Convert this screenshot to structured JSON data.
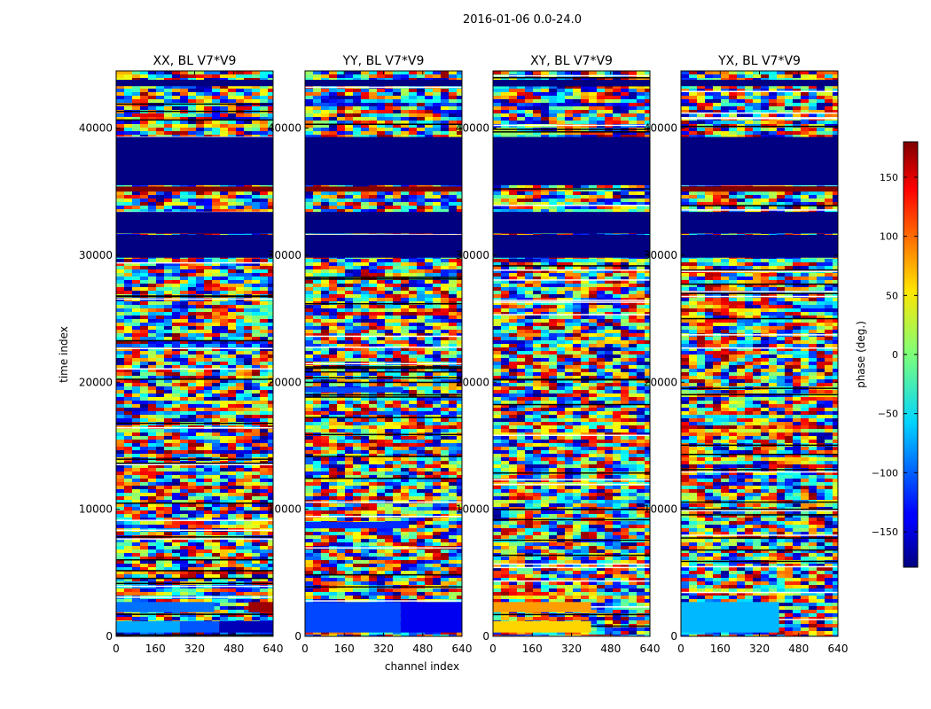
{
  "figure": {
    "suptitle": "2016-01-06 0.0-24.0"
  },
  "chart_data": {
    "type": "heatmap",
    "colormap": "jet",
    "xlabel": "channel index",
    "ylabel": "time index",
    "xlim": [
      0,
      640
    ],
    "ylim": [
      0,
      44500
    ],
    "xticks": [
      0,
      160,
      320,
      480,
      640
    ],
    "yticks": [
      0,
      10000,
      20000,
      30000,
      40000
    ],
    "colorbar": {
      "label": "phase (deg.)",
      "range": [
        -180,
        180
      ],
      "ticks": [
        150,
        100,
        50,
        0,
        -50,
        -100,
        -150
      ],
      "tick_labels": [
        "150",
        "100",
        "50",
        "0",
        "−50",
        "−100",
        "−150"
      ]
    },
    "panels": [
      {
        "title": "XX, BL V7*V9",
        "bands": [
          {
            "t0": 300,
            "t1": 1200,
            "ch0": 0,
            "ch1": 260,
            "phase": -75
          },
          {
            "t0": 300,
            "t1": 1200,
            "ch0": 260,
            "ch1": 420,
            "phase": -105
          },
          {
            "t0": 300,
            "t1": 1200,
            "ch0": 420,
            "ch1": 640,
            "phase": -160
          },
          {
            "t0": 1900,
            "t1": 2700,
            "ch0": 0,
            "ch1": 400,
            "phase": -95
          },
          {
            "t0": 1900,
            "t1": 2700,
            "ch0": 540,
            "ch1": 640,
            "phase": 170
          },
          {
            "t0": 29800,
            "t1": 31600,
            "ch0": 0,
            "ch1": 640,
            "phase": -180
          },
          {
            "t0": 31700,
            "t1": 33400,
            "ch0": 0,
            "ch1": 640,
            "phase": -180
          },
          {
            "t0": 35000,
            "t1": 35400,
            "ch0": 0,
            "ch1": 640,
            "phase": 180
          },
          {
            "t0": 35500,
            "t1": 39300,
            "ch0": 0,
            "ch1": 640,
            "phase": -180
          },
          {
            "t0": 43300,
            "t1": 43800,
            "ch0": 0,
            "ch1": 640,
            "phase": -180
          }
        ]
      },
      {
        "title": "YY, BL V7*V9",
        "bands": [
          {
            "t0": 300,
            "t1": 2700,
            "ch0": 0,
            "ch1": 390,
            "phase": -110
          },
          {
            "t0": 300,
            "t1": 2700,
            "ch0": 390,
            "ch1": 640,
            "phase": -140
          },
          {
            "t0": 8500,
            "t1": 9000,
            "ch0": 0,
            "ch1": 420,
            "phase": -120
          },
          {
            "t0": 19200,
            "t1": 19600,
            "ch0": 0,
            "ch1": 400,
            "phase": -110
          },
          {
            "t0": 29800,
            "t1": 31600,
            "ch0": 0,
            "ch1": 640,
            "phase": -180
          },
          {
            "t0": 31700,
            "t1": 33400,
            "ch0": 0,
            "ch1": 640,
            "phase": -180
          },
          {
            "t0": 35000,
            "t1": 35400,
            "ch0": 0,
            "ch1": 640,
            "phase": 180
          },
          {
            "t0": 35500,
            "t1": 39300,
            "ch0": 0,
            "ch1": 640,
            "phase": -180
          },
          {
            "t0": 43300,
            "t1": 43800,
            "ch0": 0,
            "ch1": 640,
            "phase": -180
          }
        ]
      },
      {
        "title": "XY, BL V7*V9",
        "bands": [
          {
            "t0": 1900,
            "t1": 2700,
            "ch0": 0,
            "ch1": 400,
            "phase": 80
          },
          {
            "t0": 300,
            "t1": 1200,
            "ch0": 0,
            "ch1": 400,
            "phase": 60
          },
          {
            "t0": 29800,
            "t1": 31600,
            "ch0": 0,
            "ch1": 640,
            "phase": -180
          },
          {
            "t0": 31700,
            "t1": 33400,
            "ch0": 0,
            "ch1": 640,
            "phase": -180
          },
          {
            "t0": 35500,
            "t1": 39300,
            "ch0": 0,
            "ch1": 640,
            "phase": -180
          },
          {
            "t0": 43300,
            "t1": 43800,
            "ch0": 0,
            "ch1": 640,
            "phase": -180
          }
        ]
      },
      {
        "title": "YX, BL V7*V9",
        "bands": [
          {
            "t0": 300,
            "t1": 2700,
            "ch0": 0,
            "ch1": 400,
            "phase": -70
          },
          {
            "t0": 29800,
            "t1": 31600,
            "ch0": 0,
            "ch1": 640,
            "phase": -180
          },
          {
            "t0": 31700,
            "t1": 33400,
            "ch0": 0,
            "ch1": 640,
            "phase": -180
          },
          {
            "t0": 35000,
            "t1": 35400,
            "ch0": 0,
            "ch1": 640,
            "phase": 180
          },
          {
            "t0": 35500,
            "t1": 39300,
            "ch0": 0,
            "ch1": 640,
            "phase": -180
          },
          {
            "t0": 43300,
            "t1": 43800,
            "ch0": 0,
            "ch1": 640,
            "phase": -180
          }
        ]
      }
    ]
  }
}
